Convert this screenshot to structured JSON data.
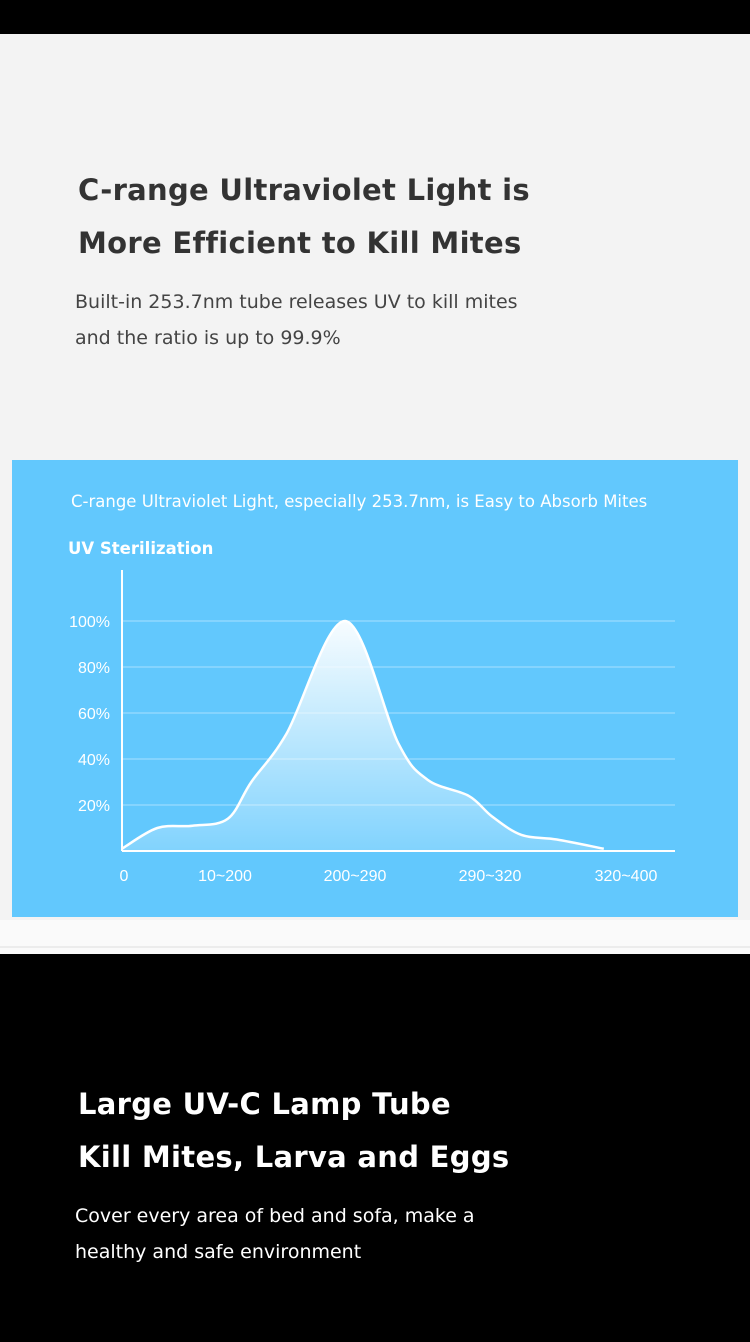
{
  "section1": {
    "heading_line1": "C-range Ultraviolet Light is",
    "heading_line2": "More Efficient to Kill Mites",
    "desc_line1": "Built-in 253.7nm tube releases UV to kill mites",
    "desc_line2": "and the ratio is up to 99.9%"
  },
  "chart": {
    "caption": "C-range Ultraviolet Light, especially 253.7nm, is Easy to Absorb Mites",
    "ylabel": "UV Sterilization"
  },
  "chart_data": {
    "type": "area",
    "title": "C-range Ultraviolet Light, especially 253.7nm, is Easy to Absorb Mites",
    "ylabel": "UV Sterilization",
    "xlabel": "",
    "x_ticks": [
      "0",
      "10~200",
      "200~290",
      "290~320",
      "320~400"
    ],
    "y_ticks": [
      "20%",
      "40%",
      "60%",
      "80%",
      "100%"
    ],
    "ylim": [
      0,
      100
    ],
    "grid": true,
    "x": [
      0,
      0.3,
      0.6,
      0.9,
      1.1,
      1.4,
      1.9,
      2.35,
      2.6,
      2.95,
      3.15,
      3.4,
      3.7,
      4.1
    ],
    "values": [
      1,
      10,
      11,
      14,
      30,
      51,
      100,
      47,
      31,
      24,
      15,
      7,
      5,
      1
    ]
  },
  "section2": {
    "heading_line1": "Large UV-C Lamp Tube",
    "heading_line2": "Kill Mites, Larva and Eggs",
    "desc_line1": "Cover every area of bed and sofa, make a",
    "desc_line2": "healthy and safe environment"
  },
  "colors": {
    "chart_bg": "#62c8fd",
    "light_bg": "#f3f3f3",
    "dark_bg": "#000000"
  }
}
